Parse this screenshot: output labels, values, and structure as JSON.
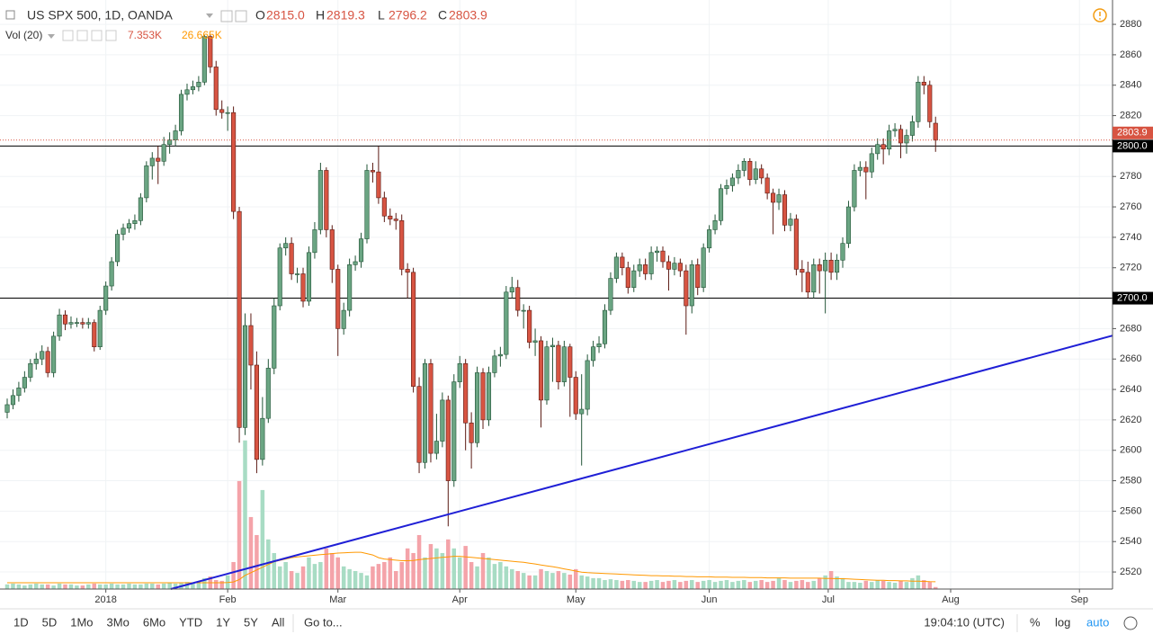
{
  "chart_data": {
    "type": "candlestick",
    "title": "US SPX 500, 1D, OANDA",
    "ohlc_header": [
      {
        "key": "O",
        "text": "2815.0"
      },
      {
        "key": "H",
        "text": "2819.3"
      },
      {
        "key": "L",
        "text": "2796.2"
      },
      {
        "key": "C",
        "text": "2803.9"
      }
    ],
    "volume_header": {
      "name": "Vol (20)",
      "volume": "7.353K",
      "average": "26.665K"
    },
    "up_color": "#6ba583",
    "down_color": "#d75442",
    "volume_up_color": "#a8dcc4",
    "volume_down_color": "#f4a3a9",
    "xlim": [
      -1.24,
      190.5
    ],
    "xticks": [
      {
        "value": 17,
        "label": "2018"
      },
      {
        "value": 38,
        "label": "Feb"
      },
      {
        "value": 57,
        "label": "Mar"
      },
      {
        "value": 78,
        "label": "Apr"
      },
      {
        "value": 98,
        "label": "May"
      },
      {
        "value": 121,
        "label": "Jun"
      },
      {
        "value": 141.5,
        "label": "Jul"
      },
      {
        "value": 162.6,
        "label": "Aug"
      },
      {
        "value": 184.8,
        "label": "Sep"
      }
    ],
    "ylim": [
      2508.8,
      2896
    ],
    "yticks": [
      2520,
      2540,
      2560,
      2580,
      2600,
      2620,
      2640,
      2660,
      2680,
      2700,
      2720,
      2740,
      2760,
      2780,
      2800,
      2820,
      2840,
      2860,
      2880
    ],
    "y2lim": [
      0,
      2160
    ],
    "series": [
      {
        "open": [
          2625,
          2630,
          2636,
          2641,
          2648,
          2657,
          2660,
          2665,
          2651,
          2675,
          2689,
          2683,
          2684,
          2684,
          2683,
          2684,
          2668,
          2692,
          2708,
          2724,
          2742,
          2746,
          2749,
          2751,
          2766,
          2787,
          2792,
          2790,
          2801,
          2804,
          2810,
          2834,
          2837,
          2839,
          2842,
          2872,
          2852,
          2824,
          2822,
          2822,
          2757,
          2615,
          2682,
          2656,
          2594,
          2621,
          2654,
          2695,
          2733,
          2736,
          2716,
          2716,
          2698,
          2730,
          2745,
          2784,
          2745,
          2719,
          2680,
          2692,
          2722,
          2724,
          2739,
          2784,
          2783,
          2766,
          2754,
          2752,
          2751,
          2719,
          2717,
          2642,
          2592,
          2657,
          2598,
          2606,
          2633,
          2580,
          2645,
          2657,
          2618,
          2605,
          2651,
          2620,
          2651,
          2662,
          2663,
          2704,
          2707,
          2692,
          2692,
          2671,
          2672,
          2633,
          2668,
          2669,
          2645,
          2668,
          2648,
          2624,
          2627,
          2659,
          2668,
          2670,
          2692,
          2713,
          2727,
          2720,
          2707,
          2718,
          2722,
          2716,
          2730,
          2731,
          2724,
          2719,
          2723,
          2718,
          2695,
          2722,
          2707,
          2733,
          2745,
          2751,
          2772,
          2774,
          2779,
          2784,
          2790,
          2778,
          2785,
          2779,
          2769,
          2763,
          2768,
          2748,
          2752,
          2719,
          2717,
          2704,
          2722,
          2718,
          2725,
          2717,
          2725,
          2736,
          2760,
          2784,
          2786,
          2783,
          2795,
          2801,
          2798,
          2810,
          2811,
          2802,
          2807,
          2816,
          2842,
          2840,
          2815
        ],
        "high": [
          2634,
          2640,
          2645,
          2652,
          2660,
          2664,
          2669,
          2668,
          2678,
          2693,
          2692,
          2688,
          2687,
          2687,
          2687,
          2686,
          2695,
          2711,
          2727,
          2745,
          2749,
          2752,
          2755,
          2769,
          2790,
          2796,
          2800,
          2806,
          2809,
          2814,
          2837,
          2841,
          2843,
          2846,
          2873,
          2873,
          2856,
          2830,
          2826,
          2826,
          2760,
          2690,
          2690,
          2665,
          2635,
          2660,
          2700,
          2736,
          2740,
          2740,
          2720,
          2720,
          2734,
          2750,
          2789,
          2786,
          2748,
          2722,
          2697,
          2726,
          2728,
          2743,
          2788,
          2789,
          2800,
          2770,
          2759,
          2756,
          2755,
          2723,
          2720,
          2648,
          2660,
          2660,
          2624,
          2638,
          2636,
          2650,
          2662,
          2660,
          2625,
          2655,
          2654,
          2655,
          2666,
          2668,
          2708,
          2714,
          2712,
          2696,
          2695,
          2680,
          2675,
          2672,
          2674,
          2672,
          2672,
          2670,
          2652,
          2650,
          2663,
          2672,
          2675,
          2696,
          2717,
          2730,
          2730,
          2724,
          2722,
          2726,
          2726,
          2734,
          2734,
          2734,
          2728,
          2727,
          2726,
          2722,
          2725,
          2726,
          2736,
          2748,
          2755,
          2775,
          2778,
          2782,
          2788,
          2792,
          2792,
          2790,
          2788,
          2782,
          2772,
          2772,
          2771,
          2756,
          2755,
          2725,
          2724,
          2726,
          2726,
          2730,
          2730,
          2729,
          2740,
          2764,
          2788,
          2790,
          2790,
          2799,
          2805,
          2805,
          2814,
          2815,
          2814,
          2811,
          2820,
          2846,
          2846,
          2843,
          2819.3
        ],
        "low": [
          2621,
          2627,
          2632,
          2638,
          2645,
          2653,
          2656,
          2648,
          2648,
          2672,
          2679,
          2680,
          2681,
          2680,
          2680,
          2665,
          2666,
          2689,
          2705,
          2721,
          2738,
          2743,
          2745,
          2748,
          2763,
          2778,
          2775,
          2787,
          2795,
          2800,
          2807,
          2830,
          2834,
          2836,
          2840,
          2848,
          2820,
          2818,
          2810,
          2752,
          2605,
          2610,
          2640,
          2585,
          2590,
          2618,
          2650,
          2692,
          2728,
          2712,
          2710,
          2694,
          2695,
          2726,
          2742,
          2740,
          2710,
          2662,
          2676,
          2688,
          2718,
          2720,
          2736,
          2776,
          2762,
          2750,
          2748,
          2745,
          2715,
          2700,
          2638,
          2585,
          2588,
          2592,
          2594,
          2602,
          2550,
          2576,
          2641,
          2600,
          2588,
          2602,
          2614,
          2616,
          2648,
          2655,
          2660,
          2700,
          2688,
          2680,
          2667,
          2662,
          2615,
          2630,
          2645,
          2640,
          2642,
          2622,
          2620,
          2590,
          2623,
          2655,
          2664,
          2667,
          2689,
          2710,
          2715,
          2703,
          2704,
          2714,
          2712,
          2712,
          2724,
          2720,
          2705,
          2715,
          2714,
          2676,
          2690,
          2702,
          2704,
          2730,
          2742,
          2748,
          2768,
          2770,
          2775,
          2780,
          2774,
          2775,
          2775,
          2765,
          2742,
          2758,
          2744,
          2744,
          2715,
          2704,
          2700,
          2700,
          2703,
          2690,
          2712,
          2712,
          2720,
          2733,
          2757,
          2780,
          2765,
          2779,
          2791,
          2788,
          2794,
          2806,
          2792,
          2795,
          2803,
          2812,
          2834,
          2812,
          2796.2
        ],
        "close": [
          2630,
          2636,
          2641,
          2648,
          2657,
          2660,
          2665,
          2651,
          2675,
          2689,
          2683,
          2684,
          2684,
          2683,
          2684,
          2668,
          2692,
          2708,
          2724,
          2742,
          2746,
          2749,
          2751,
          2766,
          2787,
          2792,
          2790,
          2801,
          2804,
          2810,
          2834,
          2837,
          2839,
          2842,
          2872,
          2852,
          2824,
          2822,
          2822,
          2757,
          2615,
          2682,
          2656,
          2594,
          2621,
          2654,
          2695,
          2733,
          2736,
          2716,
          2716,
          2698,
          2730,
          2745,
          2784,
          2745,
          2719,
          2680,
          2692,
          2722,
          2724,
          2739,
          2784,
          2783,
          2766,
          2754,
          2752,
          2751,
          2719,
          2717,
          2642,
          2592,
          2657,
          2598,
          2606,
          2633,
          2580,
          2645,
          2657,
          2618,
          2605,
          2651,
          2620,
          2651,
          2662,
          2663,
          2704,
          2707,
          2692,
          2692,
          2671,
          2672,
          2633,
          2668,
          2669,
          2645,
          2668,
          2648,
          2624,
          2627,
          2659,
          2668,
          2670,
          2692,
          2713,
          2727,
          2720,
          2707,
          2718,
          2722,
          2716,
          2730,
          2731,
          2724,
          2719,
          2723,
          2718,
          2695,
          2722,
          2707,
          2733,
          2745,
          2751,
          2772,
          2774,
          2779,
          2784,
          2790,
          2778,
          2785,
          2779,
          2769,
          2763,
          2768,
          2748,
          2752,
          2719,
          2717,
          2704,
          2722,
          2718,
          2725,
          2717,
          2725,
          2736,
          2760,
          2784,
          2786,
          2783,
          2795,
          2801,
          2798,
          2810,
          2811,
          2802,
          2807,
          2816,
          2842,
          2840,
          2816,
          2803.9
        ]
      },
      {
        "name": "Vol (20)",
        "axis": "y2",
        "values": [
          17,
          20,
          17,
          13,
          17,
          20,
          17,
          17,
          13,
          20,
          17,
          17,
          13,
          13,
          17,
          20,
          17,
          17,
          20,
          17,
          17,
          20,
          17,
          17,
          20,
          20,
          17,
          20,
          23,
          20,
          23,
          26,
          20,
          26,
          40,
          46,
          33,
          30,
          50,
          99,
          396,
          545,
          264,
          198,
          363,
          182,
          132,
          83,
          99,
          66,
          59,
          83,
          116,
          92,
          99,
          149,
          132,
          116,
          83,
          73,
          66,
          59,
          50,
          83,
          92,
          99,
          116,
          66,
          99,
          149,
          132,
          198,
          116,
          165,
          149,
          132,
          182,
          149,
          116,
          158,
          99,
          83,
          132,
          116,
          92,
          99,
          83,
          73,
          66,
          59,
          50,
          50,
          73,
          66,
          59,
          66,
          59,
          53,
          73,
          50,
          46,
          40,
          40,
          33,
          36,
          33,
          30,
          33,
          30,
          26,
          26,
          30,
          33,
          26,
          30,
          33,
          26,
          30,
          33,
          26,
          30,
          33,
          26,
          30,
          33,
          26,
          30,
          33,
          26,
          30,
          33,
          26,
          30,
          40,
          33,
          26,
          30,
          33,
          26,
          30,
          40,
          50,
          66,
          46,
          40,
          26,
          26,
          23,
          30,
          26,
          33,
          30,
          26,
          23,
          30,
          26,
          40,
          50,
          33,
          26,
          7.353
        ]
      },
      {
        "axis": "y2",
        "color": "#ff9800",
        "values": [
          23,
          23,
          23,
          23,
          23,
          23,
          23,
          23,
          23,
          23,
          23,
          23,
          23,
          23,
          23,
          23,
          23,
          23,
          23,
          23,
          23,
          23,
          23,
          23,
          23,
          23,
          23,
          23,
          23,
          23,
          23,
          23,
          23,
          23,
          23,
          23,
          23,
          23,
          24,
          26,
          35,
          50,
          60,
          70,
          80,
          90,
          100,
          105,
          110,
          115,
          118,
          120,
          122,
          124,
          126,
          128,
          130,
          132,
          133,
          134,
          135,
          135,
          130,
          125,
          115,
          110,
          108,
          106,
          104,
          104,
          105,
          108,
          110,
          112,
          114,
          116,
          118,
          120,
          120,
          118,
          116,
          114,
          112,
          110,
          108,
          106,
          104,
          102,
          100,
          98,
          95,
          92,
          88,
          85,
          82,
          78,
          74,
          70,
          66,
          62,
          60,
          59,
          58,
          57,
          56,
          55,
          54,
          53,
          52,
          51,
          50,
          49,
          49,
          48,
          48,
          47,
          47,
          46,
          46,
          45,
          45,
          45,
          44,
          44,
          44,
          43,
          43,
          43,
          42,
          42,
          42,
          41,
          41,
          41,
          41,
          40,
          40,
          40,
          40,
          40,
          40,
          39,
          39,
          38,
          38,
          37,
          36,
          35,
          34,
          33,
          32,
          32,
          31,
          31,
          30,
          30,
          29,
          29,
          28,
          27,
          26.665
        ]
      }
    ],
    "hlines": [
      {
        "value": 2800,
        "label": "2800.0"
      },
      {
        "value": 2700,
        "label": "2700.0"
      }
    ],
    "hline_color": "#000000",
    "price_line_color": "#d75442",
    "trendline": {
      "color": "#1f1fd6",
      "points": [
        [
          28.2,
          2508.8
        ],
        [
          190.5,
          2675.4
        ]
      ]
    },
    "toolbar": {
      "ranges": [
        "1D",
        "5D",
        "1Mo",
        "3Mo",
        "6Mo",
        "YTD",
        "1Y",
        "5Y",
        "All"
      ],
      "goto": "Go to...",
      "clock": "19:04:10 (UTC)",
      "options": [
        "%",
        "log",
        "auto"
      ]
    }
  }
}
